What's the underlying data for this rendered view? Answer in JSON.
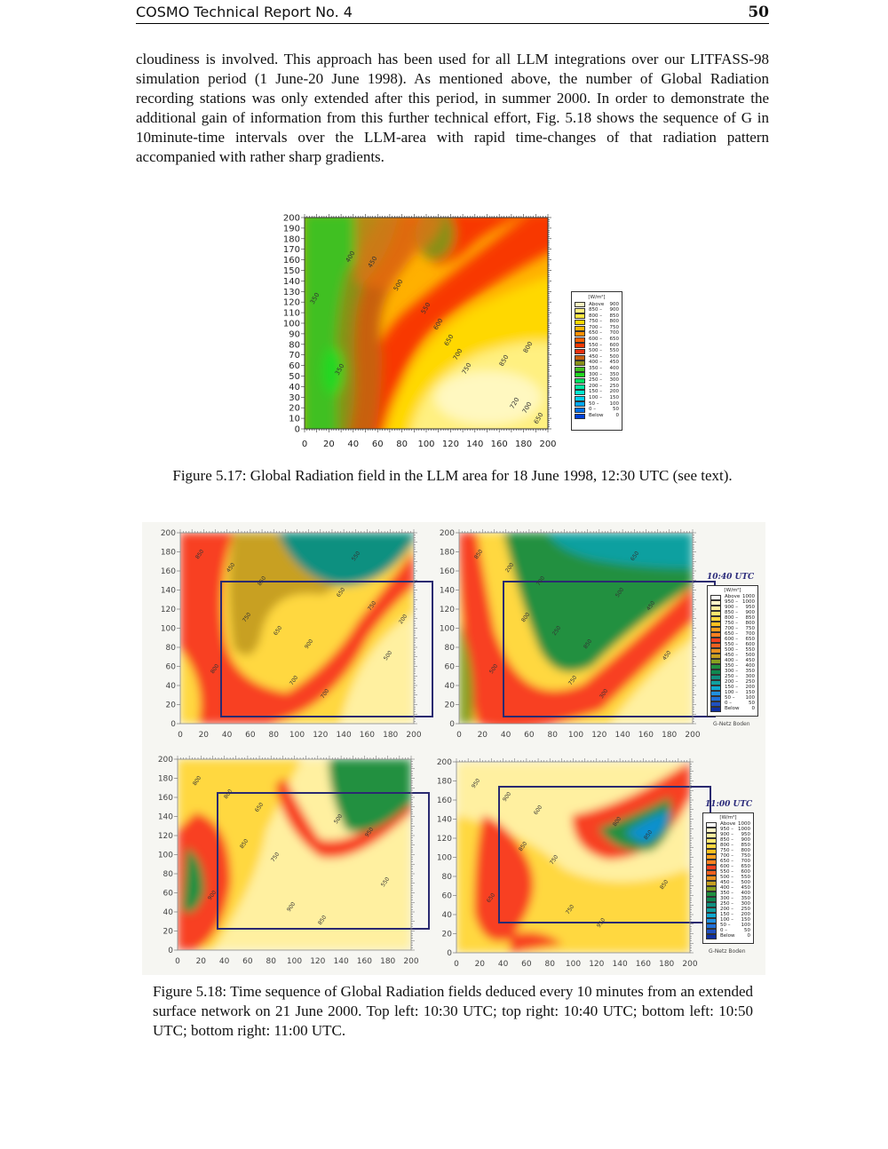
{
  "header": {
    "title": "COSMO Technical Report No. 4",
    "page_number": "50"
  },
  "body": {
    "paragraph": "cloudiness is involved.  This approach has been used for all LLM integrations over our LITFASS-98 simulation period (1 June-20 June 1998). As mentioned above, the number of Global Radiation recording stations was only extended after this period, in summer 2000. In order to demonstrate the additional gain of information from this further technical effort, Fig. 5.18 shows the sequence of G in 10minute-time intervals over the LLM-area with rapid time-changes of that radiation pattern accompanied with rather sharp gradients."
  },
  "figure_5_17": {
    "caption": "Figure 5.17: Global Radiation field in the LLM area for 18 June 1998, 12:30 UTC (see text).",
    "x_ticks": [
      "0",
      "20",
      "40",
      "60",
      "80",
      "100",
      "120",
      "140",
      "160",
      "180",
      "200"
    ],
    "y_ticks": [
      "200",
      "190",
      "180",
      "170",
      "160",
      "150",
      "140",
      "130",
      "120",
      "110",
      "100",
      "90",
      "80",
      "70",
      "60",
      "50",
      "40",
      "30",
      "20",
      "10",
      "0"
    ],
    "contour_labels": [
      "350",
      "400",
      "450",
      "500",
      "550",
      "600",
      "650",
      "700",
      "750",
      "850",
      "800",
      "350",
      "720",
      "700",
      "650"
    ],
    "legend": {
      "unit": "[W/m²]",
      "entries": [
        {
          "label": "Above",
          "value": "900",
          "color": "#fff8c0"
        },
        {
          "label": "850 –",
          "value": "900",
          "color": "#fff080"
        },
        {
          "label": "800 –",
          "value": "850",
          "color": "#ffe840"
        },
        {
          "label": "750 –",
          "value": "800",
          "color": "#ffd800"
        },
        {
          "label": "700 –",
          "value": "750",
          "color": "#ffb800"
        },
        {
          "label": "650 –",
          "value": "700",
          "color": "#ff9000"
        },
        {
          "label": "600 –",
          "value": "650",
          "color": "#ff6000"
        },
        {
          "label": "550 –",
          "value": "600",
          "color": "#f83800"
        },
        {
          "label": "500 –",
          "value": "550",
          "color": "#e83010"
        },
        {
          "label": "450 –",
          "value": "500",
          "color": "#c86010"
        },
        {
          "label": "400 –",
          "value": "450",
          "color": "#889018"
        },
        {
          "label": "350 –",
          "value": "400",
          "color": "#40c020"
        },
        {
          "label": "300 –",
          "value": "350",
          "color": "#20d820"
        },
        {
          "label": "250 –",
          "value": "300",
          "color": "#00e060"
        },
        {
          "label": "200 –",
          "value": "250",
          "color": "#00e8a0"
        },
        {
          "label": "150 –",
          "value": "200",
          "color": "#00e8d0"
        },
        {
          "label": "100 –",
          "value": "150",
          "color": "#00d0f0"
        },
        {
          "label": "50 –",
          "value": "100",
          "color": "#00a8f0"
        },
        {
          "label": "0 –",
          "value": "50",
          "color": "#0070e8"
        },
        {
          "label": "Below",
          "value": "0",
          "color": "#0040d8"
        }
      ]
    }
  },
  "figure_5_18": {
    "caption": "Figure 5.18:  Time sequence of Global Radiation fields deduced every 10 minutes from an extended surface network on 21 June 2000. Top left: 10:30 UTC; top right: 10:40 UTC; bottom left: 10:50 UTC; bottom right: 11:00 UTC.",
    "x_ticks": [
      "0",
      "20",
      "40",
      "60",
      "80",
      "100",
      "120",
      "140",
      "160",
      "180",
      "200"
    ],
    "y_ticks": [
      "200",
      "180",
      "160",
      "140",
      "120",
      "100",
      "80",
      "60",
      "40",
      "20",
      "0"
    ],
    "panel_titles": [
      "10:40 UTC",
      "11:00 UTC"
    ],
    "legend_source": "G-Netz Boden",
    "legend": {
      "unit": "[W/m²]",
      "entries": [
        {
          "label": "Above",
          "value": "1000",
          "color": "#ffffff"
        },
        {
          "label": "950 –",
          "value": "1000",
          "color": "#fff8c8"
        },
        {
          "label": "900 –",
          "value": "950",
          "color": "#fff0a0"
        },
        {
          "label": "850 –",
          "value": "900",
          "color": "#ffe870"
        },
        {
          "label": "800 –",
          "value": "850",
          "color": "#ffd840"
        },
        {
          "label": "750 –",
          "value": "800",
          "color": "#ffc020"
        },
        {
          "label": "700 –",
          "value": "750",
          "color": "#ffa020"
        },
        {
          "label": "650 –",
          "value": "700",
          "color": "#ff8020"
        },
        {
          "label": "600 –",
          "value": "650",
          "color": "#f84020"
        },
        {
          "label": "550 –",
          "value": "600",
          "color": "#f06020"
        },
        {
          "label": "500 –",
          "value": "550",
          "color": "#e89020"
        },
        {
          "label": "450 –",
          "value": "500",
          "color": "#c8a020"
        },
        {
          "label": "400 –",
          "value": "450",
          "color": "#88a020"
        },
        {
          "label": "350 –",
          "value": "400",
          "color": "#209040"
        },
        {
          "label": "300 –",
          "value": "350",
          "color": "#108850"
        },
        {
          "label": "250 –",
          "value": "300",
          "color": "#109080"
        },
        {
          "label": "200 –",
          "value": "250",
          "color": "#10a0a0"
        },
        {
          "label": "150 –",
          "value": "200",
          "color": "#10a8d0"
        },
        {
          "label": "100 –",
          "value": "150",
          "color": "#2090e0"
        },
        {
          "label": "50 –",
          "value": "100",
          "color": "#2070d8"
        },
        {
          "label": "0 –",
          "value": "50",
          "color": "#2050c0"
        },
        {
          "label": "Below",
          "value": "0",
          "color": "#1030a0"
        }
      ]
    },
    "contour_labels": {
      "top_left": [
        "850",
        "750",
        "700",
        "650",
        "500",
        "450",
        "650",
        "700",
        "750",
        "800",
        "850",
        "900",
        "550",
        "200"
      ],
      "top_right": [
        "850",
        "800",
        "750",
        "500",
        "450",
        "200",
        "250",
        "300",
        "450",
        "500",
        "700",
        "850",
        "650"
      ],
      "bottom_left": [
        "800",
        "850",
        "900",
        "500",
        "550",
        "800",
        "750",
        "850",
        "950",
        "900",
        "650"
      ],
      "bottom_right": [
        "950",
        "850",
        "750",
        "800",
        "850",
        "900",
        "750",
        "950",
        "850",
        "650",
        "600"
      ]
    }
  }
}
